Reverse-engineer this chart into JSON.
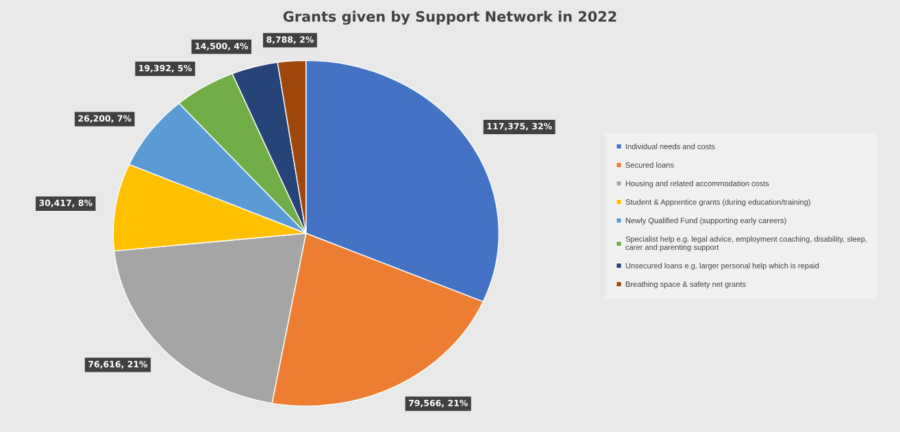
{
  "chart_data": {
    "type": "pie",
    "title": "Grants given by Support Network in 2022",
    "categories": [
      "Individual needs and costs",
      "Secured loans",
      "Housing and related accommodation costs",
      "Student & Apprentice grants (during education/training)",
      "Newly Qualified Fund (supporting early careers)",
      "Specialist help e.g. legal advice, employment coaching, disability, sleep, carer and parenting support",
      "Unsecured loans e.g. larger personal help which is repaid",
      "Breathing space & safety net grants"
    ],
    "values": [
      117375,
      79566,
      76616,
      30417,
      26200,
      19392,
      14500,
      8788
    ],
    "colors": [
      "#4472c4",
      "#ed7d31",
      "#a5a5a5",
      "#ffc000",
      "#5b9bd5",
      "#70ad47",
      "#264478",
      "#9e480e"
    ],
    "value_labels": [
      "117,375, 32%",
      "79,566, 21%",
      "76,616, 21%",
      "30,417, 8%",
      "26,200, 7%",
      "19,392, 5%",
      "14,500, 4%",
      "8,788, 2%"
    ],
    "legend": "right"
  }
}
